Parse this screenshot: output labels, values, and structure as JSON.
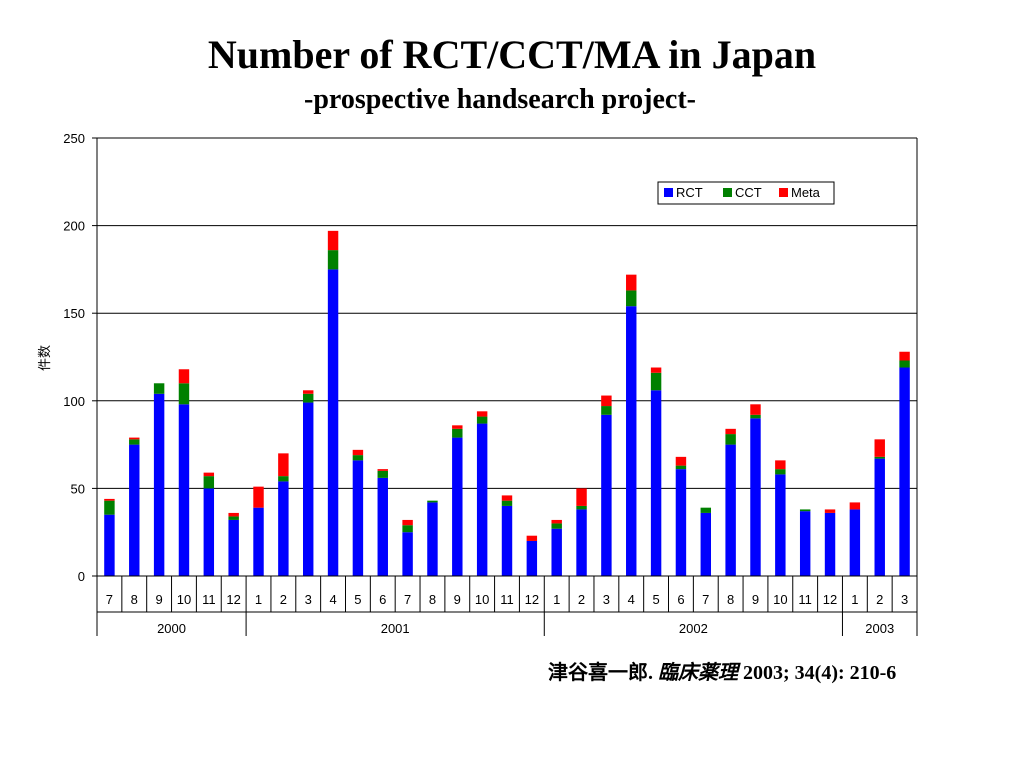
{
  "chart_data": {
    "type": "bar",
    "stacked": true,
    "title": "Number of RCT/CCT/MA in Japan",
    "subtitle": "-prospective handsearch project-",
    "ylabel": "件数",
    "ylim": [
      0,
      250
    ],
    "yticks": [
      0,
      50,
      100,
      150,
      200,
      250
    ],
    "grid": true,
    "legend_position": "top-right",
    "categories": [
      "7",
      "8",
      "9",
      "10",
      "11",
      "12",
      "1",
      "2",
      "3",
      "4",
      "5",
      "6",
      "7",
      "8",
      "9",
      "10",
      "11",
      "12",
      "1",
      "2",
      "3",
      "4",
      "5",
      "6",
      "7",
      "8",
      "9",
      "10",
      "11",
      "12",
      "1",
      "2",
      "3"
    ],
    "year_groups": [
      {
        "label": "2000",
        "start": 0,
        "count": 6
      },
      {
        "label": "2001",
        "start": 6,
        "count": 12
      },
      {
        "label": "2002",
        "start": 18,
        "count": 12
      },
      {
        "label": "2003",
        "start": 30,
        "count": 3
      }
    ],
    "series": [
      {
        "name": "RCT",
        "color": "#0000ff",
        "values": [
          35,
          75,
          104,
          98,
          50,
          32,
          39,
          54,
          99,
          175,
          66,
          56,
          25,
          42,
          79,
          87,
          40,
          20,
          27,
          38,
          92,
          154,
          106,
          61,
          36,
          75,
          90,
          58,
          37,
          36,
          38,
          67,
          119
        ]
      },
      {
        "name": "CCT",
        "color": "#008000",
        "values": [
          8,
          3,
          6,
          12,
          7,
          2,
          0,
          3,
          5,
          11,
          3,
          4,
          4,
          1,
          5,
          4,
          3,
          0,
          3,
          2,
          5,
          9,
          10,
          2,
          3,
          6,
          2,
          3,
          1,
          0,
          0,
          1,
          4
        ]
      },
      {
        "name": "Meta",
        "color": "#ff0000",
        "values": [
          1,
          1,
          0,
          8,
          2,
          2,
          12,
          13,
          2,
          11,
          3,
          1,
          3,
          0,
          2,
          3,
          3,
          3,
          2,
          10,
          6,
          9,
          3,
          5,
          0,
          3,
          6,
          5,
          0,
          2,
          4,
          10,
          5
        ]
      }
    ]
  },
  "citation": {
    "author": "津谷喜一郎.",
    "journal": "臨床薬理",
    "details": "2003; 34(4): 210-6"
  }
}
